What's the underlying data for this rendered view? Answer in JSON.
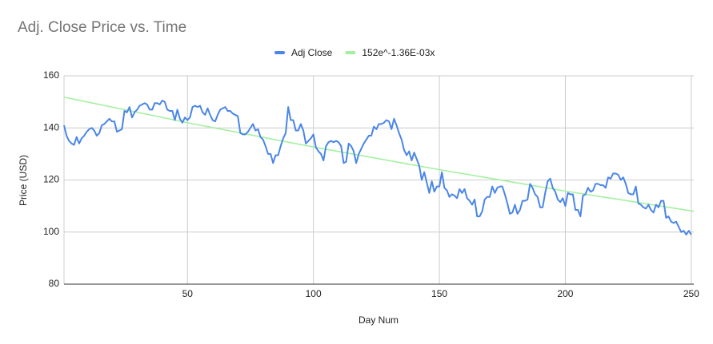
{
  "chart_data": {
    "type": "line",
    "title": "Adj. Close Price vs. Time",
    "x_label": "Day Num",
    "y_label": "Price (USD)",
    "xlim": [
      1,
      251
    ],
    "ylim": [
      80,
      160
    ],
    "xticks": [
      50,
      100,
      150,
      200,
      250
    ],
    "yticks": [
      80,
      100,
      120,
      140,
      160
    ],
    "grid": true,
    "legend": "top",
    "series": [
      {
        "name": "Adj Close",
        "color": "#4a86e8",
        "x": [
          1,
          2,
          3,
          4,
          5,
          6,
          7,
          8,
          9,
          10,
          11,
          12,
          13,
          14,
          15,
          16,
          17,
          18,
          19,
          20,
          21,
          22,
          23,
          24,
          25,
          26,
          27,
          28,
          29,
          30,
          31,
          32,
          33,
          34,
          35,
          36,
          37,
          38,
          39,
          40,
          41,
          42,
          43,
          44,
          45,
          46,
          47,
          48,
          49,
          50,
          51,
          52,
          53,
          54,
          55,
          56,
          57,
          58,
          59,
          60,
          61,
          62,
          63,
          64,
          65,
          66,
          67,
          68,
          69,
          70,
          71,
          72,
          73,
          74,
          75,
          76,
          77,
          78,
          79,
          80,
          81,
          82,
          83,
          84,
          85,
          86,
          87,
          88,
          89,
          90,
          91,
          92,
          93,
          94,
          95,
          96,
          97,
          98,
          99,
          100,
          101,
          102,
          103,
          104,
          105,
          106,
          107,
          108,
          109,
          110,
          111,
          112,
          113,
          114,
          115,
          116,
          117,
          118,
          119,
          120,
          121,
          122,
          123,
          124,
          125,
          126,
          127,
          128,
          129,
          130,
          131,
          132,
          133,
          134,
          135,
          136,
          137,
          138,
          139,
          140,
          141,
          142,
          143,
          144,
          145,
          146,
          147,
          148,
          149,
          150,
          151,
          152,
          153,
          154,
          155,
          156,
          157,
          158,
          159,
          160,
          161,
          162,
          163,
          164,
          165,
          166,
          167,
          168,
          169,
          170,
          171,
          172,
          173,
          174,
          175,
          176,
          177,
          178,
          179,
          180,
          181,
          182,
          183,
          184,
          185,
          186,
          187,
          188,
          189,
          190,
          191,
          192,
          193,
          194,
          195,
          196,
          197,
          198,
          199,
          200,
          201,
          202,
          203,
          204,
          205,
          206,
          207,
          208,
          209,
          210,
          211,
          212,
          213,
          214,
          215,
          216,
          217,
          218,
          219,
          220,
          221,
          222,
          223,
          224,
          225,
          226,
          227,
          228,
          229,
          230,
          231,
          232,
          233,
          234,
          235,
          236,
          237,
          238,
          239,
          240,
          241,
          242,
          243,
          244,
          245,
          246,
          247,
          248,
          249,
          250
        ],
        "values": [
          141,
          137,
          135,
          134,
          133.5,
          136.5,
          134,
          136,
          137,
          138.5,
          139.5,
          140,
          139,
          137,
          138,
          141,
          141.5,
          142.5,
          143.5,
          142.5,
          142.5,
          138.5,
          139,
          139.5,
          146.5,
          146,
          148,
          144,
          146,
          147,
          148.5,
          149,
          149.5,
          149,
          147,
          147,
          149.5,
          149.5,
          149,
          150.5,
          150,
          147,
          146.5,
          146.5,
          143,
          147,
          143.5,
          142,
          144,
          143,
          144,
          148,
          148.5,
          148,
          148.5,
          146,
          145,
          147.5,
          145,
          143,
          142.5,
          145,
          147,
          147.5,
          148,
          146.5,
          146.5,
          145.5,
          145,
          144.5,
          138,
          137.5,
          137.5,
          138.5,
          140,
          141.5,
          139,
          139.5,
          136.5,
          135.5,
          133,
          130,
          130,
          126.5,
          129.5,
          129.5,
          133,
          136,
          138,
          148,
          143,
          143,
          139,
          139,
          141.5,
          139,
          134,
          135,
          136,
          137.5,
          132.5,
          131,
          130,
          127.5,
          133,
          134.5,
          135,
          134.5,
          135,
          134.5,
          133,
          126.5,
          127,
          134,
          133,
          131,
          126.5,
          130,
          132,
          134,
          135.5,
          137,
          137,
          140.5,
          139.5,
          141.5,
          141.5,
          142,
          143,
          142.5,
          139.5,
          143.5,
          141,
          138,
          135.5,
          131.5,
          129.5,
          131,
          127.5,
          130.5,
          128,
          125.5,
          120,
          123,
          119,
          115,
          119.5,
          115.5,
          117.5,
          117.5,
          123,
          117,
          116,
          113.5,
          114.5,
          114,
          113,
          116.5,
          115,
          116.5,
          113,
          112,
          110.5,
          112.5,
          106,
          106,
          108,
          112.5,
          113.5,
          113.5,
          117.5,
          115,
          117,
          117.5,
          117.5,
          114.5,
          111,
          107,
          107.5,
          110.5,
          107,
          108.5,
          112,
          112,
          112.5,
          118.5,
          117,
          114.5,
          113.5,
          109.5,
          109.5,
          115,
          119.5,
          120.5,
          117,
          115.5,
          112.5,
          111.5,
          113,
          110,
          115,
          114.5,
          114.5,
          108.5,
          108.5,
          106,
          114,
          114.5,
          117,
          115.5,
          116,
          118.5,
          118.5,
          118,
          118,
          117,
          121,
          120.5,
          122.5,
          122.5,
          122,
          120,
          121,
          118.5,
          115,
          114.5,
          114.5,
          117.5,
          111,
          110.5,
          109.5,
          109,
          110.5,
          108.5,
          107.5,
          110.5,
          109.5,
          112,
          112,
          105.5,
          106,
          104,
          103.5,
          104,
          102,
          100,
          100.5,
          99,
          100.5,
          99
        ]
      },
      {
        "name": "152e^-1.36E-03x",
        "color": "#a4f0a0",
        "x": [
          1,
          51,
          101,
          151,
          201,
          251
        ],
        "values": [
          151.8,
          141.8,
          132.5,
          123.8,
          115.6,
          108.0
        ]
      }
    ]
  }
}
